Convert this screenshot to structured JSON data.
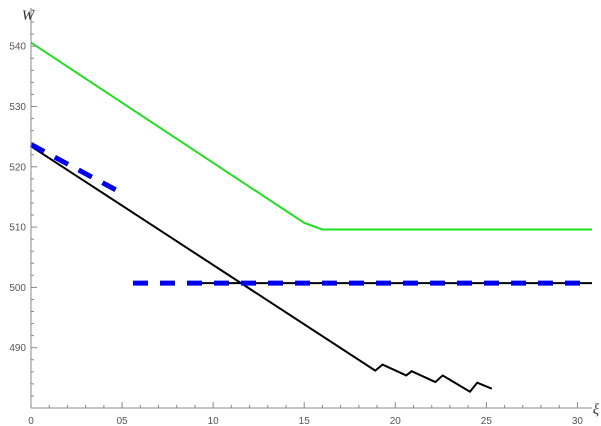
{
  "chart_data": {
    "type": "line",
    "xlabel": "ξ",
    "ylabel": "W",
    "xlim": [
      0,
      30.8
    ],
    "ylim": [
      480,
      546
    ],
    "grid": false,
    "x_ticks": [
      {
        "value": 0,
        "label": "0"
      },
      {
        "value": 5,
        "label": "05"
      },
      {
        "value": 10,
        "label": "10"
      },
      {
        "value": 15,
        "label": "15"
      },
      {
        "value": 20,
        "label": "20"
      },
      {
        "value": 25,
        "label": "25"
      },
      {
        "value": 30,
        "label": "30"
      }
    ],
    "y_ticks": [
      {
        "value": 490,
        "label": "490"
      },
      {
        "value": 500,
        "label": "500"
      },
      {
        "value": 510,
        "label": "510"
      },
      {
        "value": 520,
        "label": "520"
      },
      {
        "value": 530,
        "label": "530"
      },
      {
        "value": 540,
        "label": "540"
      }
    ],
    "series": [
      {
        "color": "#22dd22",
        "style": "solid",
        "points": [
          [
            0,
            540.6
          ],
          [
            15.0,
            510.7
          ],
          [
            16.0,
            509.6
          ],
          [
            30.8,
            509.6
          ]
        ]
      },
      {
        "color": "#000000",
        "style": "solid",
        "points": [
          [
            0,
            523.4
          ],
          [
            18.9,
            486.2
          ],
          [
            19.3,
            487.2
          ],
          [
            20.6,
            485.4
          ],
          [
            20.9,
            486.1
          ],
          [
            22.2,
            484.3
          ],
          [
            22.6,
            485.4
          ],
          [
            24.1,
            482.7
          ],
          [
            24.5,
            484.2
          ],
          [
            25.3,
            483.2
          ]
        ]
      },
      {
        "color": "#000000",
        "style": "solid",
        "points": [
          [
            8.6,
            500.7
          ],
          [
            30.8,
            500.7
          ]
        ]
      },
      {
        "color": "#0000ee",
        "style": "dashed",
        "points": [
          [
            0,
            523.7
          ],
          [
            5.2,
            515.3
          ]
        ]
      },
      {
        "color": "#0000ee",
        "style": "dashed",
        "points": [
          [
            5.6,
            500.7
          ],
          [
            30.8,
            500.7
          ]
        ]
      }
    ]
  }
}
